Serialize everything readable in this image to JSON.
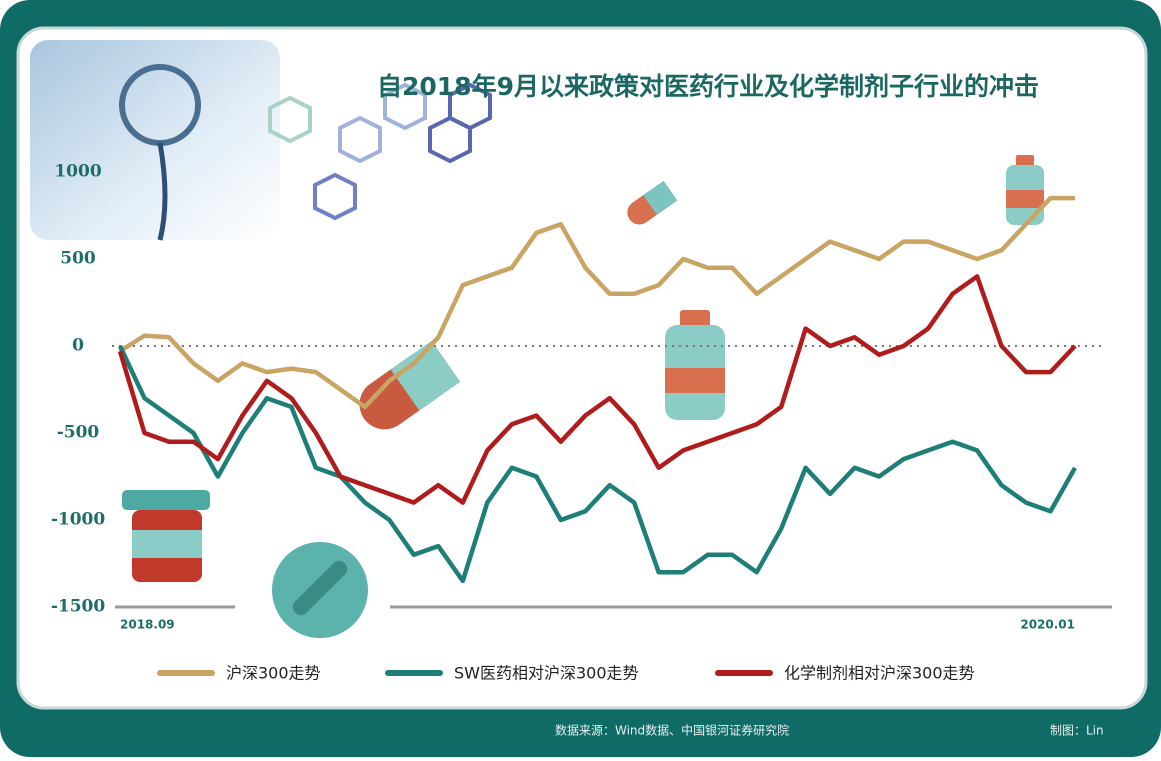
{
  "chart_data": {
    "type": "line",
    "title": "自2018年9月以来政策对医药行业及化学制剂子行业的冲击",
    "categories": [
      "2018.09",
      null,
      null,
      null,
      null,
      null,
      null,
      null,
      null,
      null,
      null,
      null,
      null,
      null,
      null,
      null,
      null,
      null,
      null,
      null,
      null,
      null,
      null,
      null,
      null,
      null,
      null,
      null,
      null,
      null,
      null,
      null,
      null,
      null,
      null,
      null,
      null,
      null,
      null,
      "2020.01"
    ],
    "series": [
      {
        "name": "沪深300走势",
        "color": "#c9a463",
        "values": [
          -30,
          60,
          50,
          -100,
          -200,
          -100,
          -150,
          -130,
          -150,
          -250,
          -350,
          -200,
          -100,
          50,
          350,
          400,
          450,
          650,
          700,
          450,
          300,
          300,
          350,
          500,
          450,
          450,
          300,
          400,
          500,
          600,
          550,
          500,
          600,
          600,
          550,
          500,
          550,
          700,
          850,
          850
        ]
      },
      {
        "name": "SW医药相对沪深300走势",
        "color": "#1d7f78",
        "values": [
          0,
          -300,
          -400,
          -500,
          -750,
          -500,
          -300,
          -350,
          -700,
          -750,
          -900,
          -1000,
          -1200,
          -1150,
          -1350,
          -900,
          -700,
          -750,
          -1000,
          -950,
          -800,
          -900,
          -1300,
          -1300,
          -1200,
          -1200,
          -1300,
          -1050,
          -700,
          -850,
          -700,
          -750,
          -650,
          -600,
          -550,
          -600,
          -800,
          -900,
          -950,
          -700
        ]
      },
      {
        "name": "化学制剂相对沪深300走势",
        "color": "#b01c1c",
        "values": [
          -30,
          -500,
          -550,
          -550,
          -650,
          -400,
          -200,
          -300,
          -500,
          -750,
          -800,
          -850,
          -900,
          -800,
          -900,
          -600,
          -450,
          -400,
          -550,
          -400,
          -300,
          -450,
          -700,
          -600,
          -550,
          -500,
          -450,
          -350,
          100,
          0,
          50,
          -50,
          0,
          100,
          300,
          400,
          0,
          -150,
          -150,
          0
        ]
      }
    ],
    "ylim": [
      -1500,
      1000
    ],
    "yticks": [
      1000,
      500,
      0,
      -500,
      -1000,
      -1500
    ],
    "zeroline": true,
    "source": "数据来源：Wind数据、中国银河证券研究院",
    "credit": "制图：Lin"
  }
}
